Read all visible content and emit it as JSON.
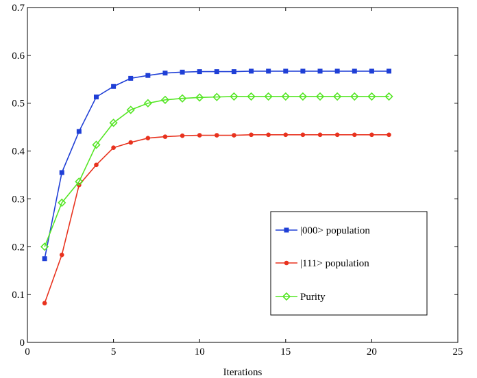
{
  "chart_data": {
    "type": "line",
    "title": "",
    "xlabel": "Iterations",
    "ylabel": "",
    "xlim": [
      0,
      25
    ],
    "ylim": [
      0,
      0.7
    ],
    "xticks": [
      0,
      5,
      10,
      15,
      20,
      25
    ],
    "yticks": [
      0,
      0.1,
      0.2,
      0.3,
      0.4,
      0.5,
      0.6,
      0.7
    ],
    "grid": false,
    "legend_position": "bottom-right",
    "x": [
      1,
      2,
      3,
      4,
      5,
      6,
      7,
      8,
      9,
      10,
      11,
      12,
      13,
      14,
      15,
      16,
      17,
      18,
      19,
      20,
      21
    ],
    "series": [
      {
        "name": "|000> population",
        "color": "#1f3fd6",
        "marker": "square",
        "values": [
          0.175,
          0.355,
          0.441,
          0.513,
          0.535,
          0.552,
          0.558,
          0.563,
          0.565,
          0.566,
          0.566,
          0.566,
          0.567,
          0.567,
          0.567,
          0.567,
          0.567,
          0.567,
          0.567,
          0.567,
          0.567
        ]
      },
      {
        "name": "|111> population",
        "color": "#e8321e",
        "marker": "dot",
        "values": [
          0.082,
          0.183,
          0.329,
          0.371,
          0.407,
          0.418,
          0.427,
          0.43,
          0.432,
          0.433,
          0.433,
          0.433,
          0.434,
          0.434,
          0.434,
          0.434,
          0.434,
          0.434,
          0.434,
          0.434,
          0.434
        ]
      },
      {
        "name": "Purity",
        "color": "#55e625",
        "marker": "diamond",
        "values": [
          0.2,
          0.292,
          0.336,
          0.413,
          0.459,
          0.486,
          0.5,
          0.507,
          0.51,
          0.512,
          0.513,
          0.514,
          0.514,
          0.514,
          0.514,
          0.514,
          0.514,
          0.514,
          0.514,
          0.514,
          0.514
        ]
      }
    ]
  }
}
